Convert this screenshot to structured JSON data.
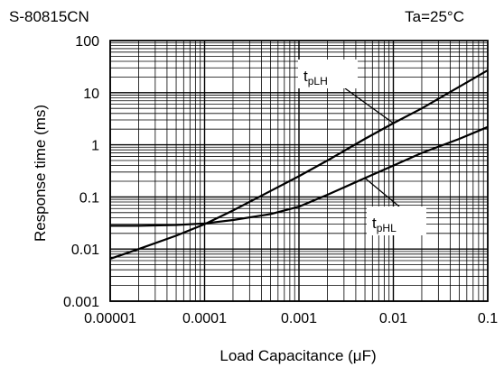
{
  "chart_data": {
    "type": "line",
    "part_number": "S-80815CN",
    "condition": "Ta=25°C",
    "xlabel": "Load Capacitance (μF)",
    "ylabel": "Response time (ms)",
    "x_scale": "log",
    "y_scale": "log",
    "xlim": [
      1e-05,
      0.1
    ],
    "ylim": [
      0.001,
      100
    ],
    "x_ticks": [
      "0.00001",
      "0.0001",
      "0.001",
      "0.01",
      "0.1"
    ],
    "y_ticks": [
      "0.001",
      "0.01",
      "0.1",
      "1",
      "10",
      "100"
    ],
    "grid": true,
    "series": [
      {
        "name": "tpLH",
        "label_main": "t",
        "label_sub": "pLH",
        "x": [
          1e-05,
          2e-05,
          5e-05,
          0.0001,
          0.0002,
          0.0005,
          0.001,
          0.002,
          0.005,
          0.01,
          0.02,
          0.05,
          0.1
        ],
        "y": [
          0.0065,
          0.01,
          0.018,
          0.03,
          0.055,
          0.13,
          0.25,
          0.5,
          1.3,
          2.6,
          5,
          13,
          27
        ]
      },
      {
        "name": "tpHL",
        "label_main": "t",
        "label_sub": "pHL",
        "x": [
          1e-05,
          2e-05,
          5e-05,
          0.0001,
          0.0002,
          0.0005,
          0.001,
          0.002,
          0.005,
          0.01,
          0.02,
          0.05,
          0.1
        ],
        "y": [
          0.028,
          0.028,
          0.029,
          0.031,
          0.036,
          0.047,
          0.065,
          0.11,
          0.23,
          0.4,
          0.7,
          1.3,
          2.2
        ]
      }
    ]
  }
}
